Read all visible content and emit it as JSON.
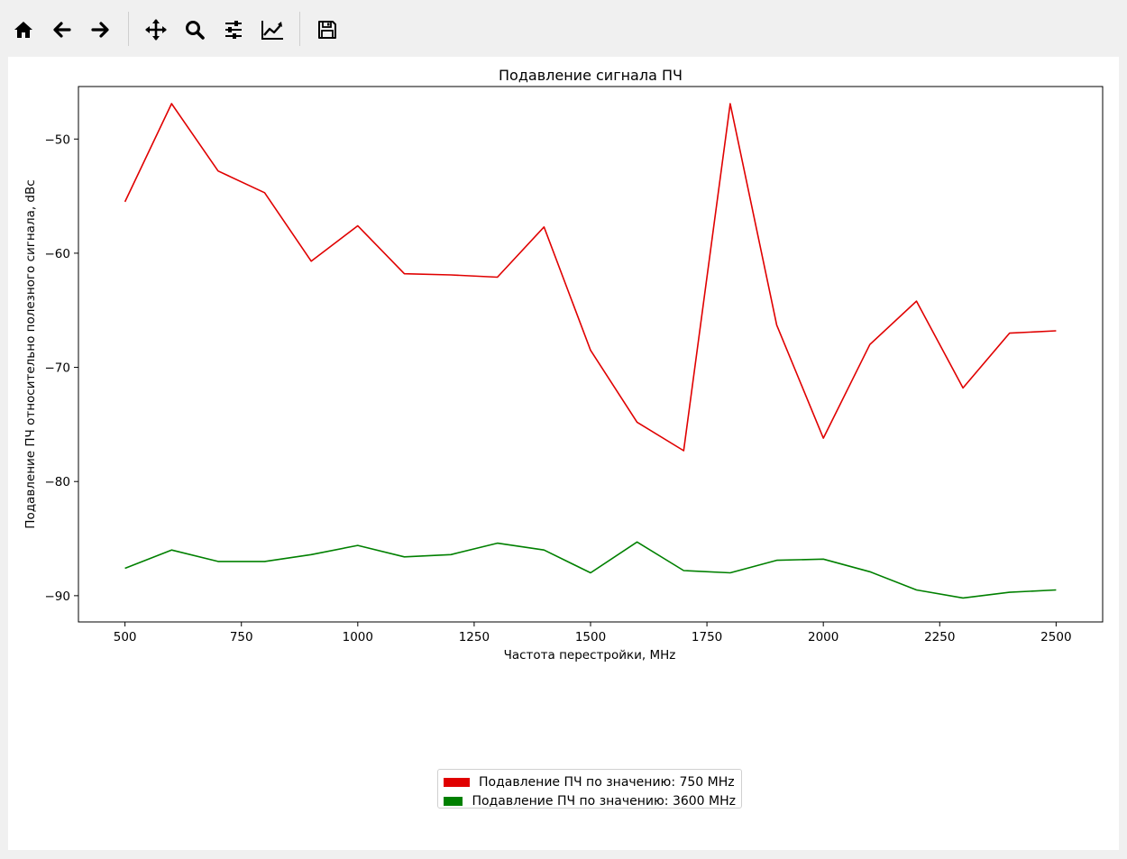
{
  "toolbar": {
    "buttons": [
      {
        "name": "home-button",
        "icon": "home-icon"
      },
      {
        "name": "back-button",
        "icon": "arrow-left-icon"
      },
      {
        "name": "forward-button",
        "icon": "arrow-right-icon"
      },
      {
        "name": "pan-button",
        "icon": "move-icon"
      },
      {
        "name": "zoom-button",
        "icon": "magnifier-icon"
      },
      {
        "name": "configure-subplots-button",
        "icon": "sliders-icon"
      },
      {
        "name": "edit-axis-button",
        "icon": "line-chart-icon"
      },
      {
        "name": "save-button",
        "icon": "floppy-disk-icon"
      }
    ]
  },
  "chart_data": {
    "type": "line",
    "title": "Подавление сигнала ПЧ",
    "xlabel": "Частота перестройки, MHz",
    "ylabel": "Подавление ПЧ относительно полезного сигнала, dBc",
    "xlim": [
      400,
      2600
    ],
    "ylim": [
      -92.3,
      -45.4
    ],
    "xticks": [
      500,
      750,
      1000,
      1250,
      1500,
      1750,
      2000,
      2250,
      2500
    ],
    "yticks": [
      -90,
      -80,
      -70,
      -60,
      -50
    ],
    "grid": false,
    "legend_position": "bottom-center",
    "x": [
      500,
      600,
      700,
      800,
      900,
      1000,
      1100,
      1200,
      1300,
      1400,
      1500,
      1600,
      1700,
      1800,
      1900,
      2000,
      2100,
      2200,
      2300,
      2400,
      2500
    ],
    "series": [
      {
        "name": "Подавление ПЧ по значению: 750 MHz",
        "color": "#e00000",
        "values": [
          -55.5,
          -46.9,
          -52.8,
          -54.7,
          -60.7,
          -57.6,
          -61.8,
          -61.9,
          -62.1,
          -57.7,
          -68.5,
          -74.8,
          -77.3,
          -46.9,
          -66.3,
          -76.2,
          -68.0,
          -64.2,
          -71.8,
          -67.0,
          -66.8
        ]
      },
      {
        "name": "Подавление ПЧ по значению: 3600 MHz",
        "color": "#008000",
        "values": [
          -87.6,
          -86.0,
          -87.0,
          -87.0,
          -86.4,
          -85.6,
          -86.6,
          -86.4,
          -85.4,
          -86.0,
          -88.0,
          -85.3,
          -87.8,
          -88.0,
          -86.9,
          -86.8,
          -87.9,
          -89.5,
          -90.2,
          -89.7,
          -89.5
        ]
      }
    ]
  }
}
